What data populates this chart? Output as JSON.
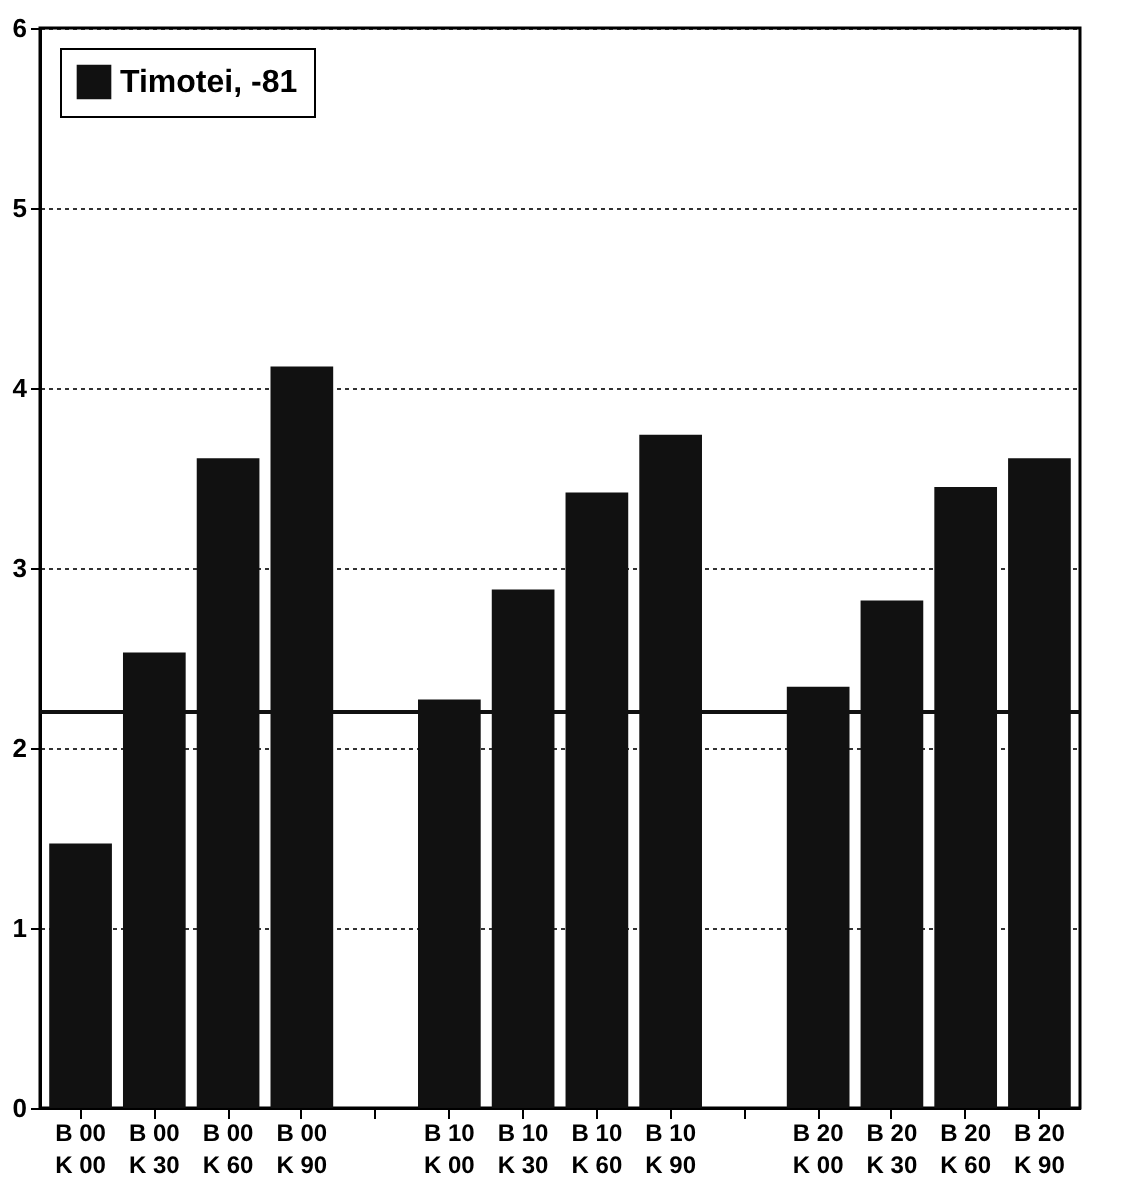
{
  "chart_data": {
    "type": "bar",
    "categories": [
      "B 00\nK 00",
      "B 00\nK 30",
      "B 00\nK 60",
      "B 00\nK 90",
      null,
      "B 10\nK 00",
      "B 10\nK 30",
      "B 10\nK 60",
      "B 10\nK 90",
      null,
      "B 20\nK 00",
      "B 20\nK 30",
      "B 20\nK 60",
      "B 20\nK 90"
    ],
    "series": [
      {
        "name": "Timotei, -81",
        "color": "#111111",
        "values": [
          1.47,
          2.53,
          3.61,
          4.12,
          null,
          2.27,
          2.88,
          3.42,
          3.74,
          null,
          2.34,
          2.82,
          3.45,
          3.61
        ]
      }
    ],
    "ylim": [
      0,
      6
    ],
    "yticks": [
      0,
      1,
      2,
      3,
      4,
      5,
      6
    ],
    "grid": "y",
    "legend": "top left",
    "ref_lines": [
      {
        "axis": "y",
        "value": 2.2,
        "color": "#111111",
        "line_style": "solid"
      }
    ]
  }
}
